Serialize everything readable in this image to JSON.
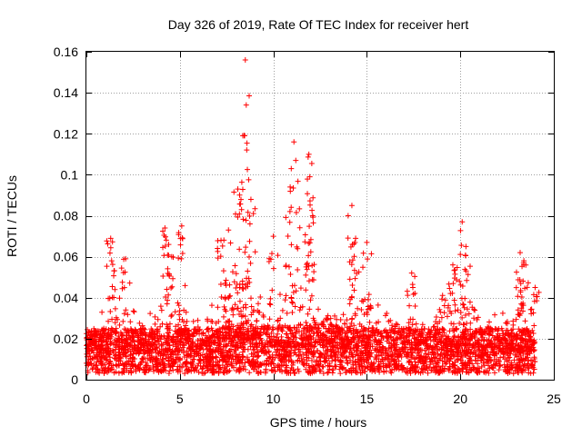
{
  "chart_data": {
    "type": "scatter",
    "title": "Day 326 of 2019, Rate Of TEC Index for receiver hert",
    "xlabel": "GPS time / hours",
    "ylabel": "ROTI / TECUs",
    "xlim": [
      0,
      25
    ],
    "ylim": [
      0,
      0.16
    ],
    "xticks": [
      0,
      5,
      10,
      15,
      20,
      25
    ],
    "xtick_labels": [
      "0",
      "5",
      "10",
      "15",
      "20",
      "25"
    ],
    "yticks": [
      0,
      0.02,
      0.04,
      0.06,
      0.08,
      0.1,
      0.12,
      0.14,
      0.16
    ],
    "ytick_labels": [
      "0",
      "0.02",
      "0.04",
      "0.06",
      "0.08",
      "0.1",
      "0.12",
      "0.14",
      "0.16"
    ],
    "grid": true,
    "marker": "+",
    "color": "#ff0000",
    "note": "Dense scatter of ROTI samples; baseline ~0.005-0.025 TECU/min across 0-24 h; highlighted peaks listed below.",
    "peaks": [
      {
        "x": 1.3,
        "y": 0.069
      },
      {
        "x": 1.35,
        "y": 0.058
      },
      {
        "x": 2.1,
        "y": 0.059
      },
      {
        "x": 4.2,
        "y": 0.074
      },
      {
        "x": 4.4,
        "y": 0.066
      },
      {
        "x": 5.1,
        "y": 0.075
      },
      {
        "x": 7.2,
        "y": 0.068
      },
      {
        "x": 7.6,
        "y": 0.073
      },
      {
        "x": 8.1,
        "y": 0.093
      },
      {
        "x": 8.3,
        "y": 0.083
      },
      {
        "x": 8.5,
        "y": 0.156
      },
      {
        "x": 8.55,
        "y": 0.134
      },
      {
        "x": 8.8,
        "y": 0.088
      },
      {
        "x": 10.0,
        "y": 0.07
      },
      {
        "x": 10.9,
        "y": 0.094
      },
      {
        "x": 11.1,
        "y": 0.116
      },
      {
        "x": 11.2,
        "y": 0.107
      },
      {
        "x": 11.9,
        "y": 0.11
      },
      {
        "x": 11.95,
        "y": 0.099
      },
      {
        "x": 12.1,
        "y": 0.08
      },
      {
        "x": 14.2,
        "y": 0.085
      },
      {
        "x": 14.4,
        "y": 0.069
      },
      {
        "x": 15.0,
        "y": 0.067
      },
      {
        "x": 17.4,
        "y": 0.052
      },
      {
        "x": 19.6,
        "y": 0.056
      },
      {
        "x": 20.1,
        "y": 0.077
      },
      {
        "x": 20.3,
        "y": 0.065
      },
      {
        "x": 23.2,
        "y": 0.062
      },
      {
        "x": 23.4,
        "y": 0.058
      },
      {
        "x": 24.0,
        "y": 0.045
      }
    ],
    "envelope": [
      {
        "x": 0.0,
        "base": 0.01,
        "top": 0.022
      },
      {
        "x": 0.5,
        "base": 0.01,
        "top": 0.028
      },
      {
        "x": 1.0,
        "base": 0.01,
        "top": 0.038
      },
      {
        "x": 1.5,
        "base": 0.01,
        "top": 0.036
      },
      {
        "x": 2.0,
        "base": 0.01,
        "top": 0.042
      },
      {
        "x": 2.5,
        "base": 0.01,
        "top": 0.038
      },
      {
        "x": 3.0,
        "base": 0.01,
        "top": 0.026
      },
      {
        "x": 3.5,
        "base": 0.01,
        "top": 0.03
      },
      {
        "x": 4.0,
        "base": 0.01,
        "top": 0.04
      },
      {
        "x": 4.5,
        "base": 0.01,
        "top": 0.042
      },
      {
        "x": 5.0,
        "base": 0.01,
        "top": 0.04
      },
      {
        "x": 5.5,
        "base": 0.01,
        "top": 0.032
      },
      {
        "x": 6.0,
        "base": 0.01,
        "top": 0.03
      },
      {
        "x": 6.5,
        "base": 0.01,
        "top": 0.034
      },
      {
        "x": 7.0,
        "base": 0.01,
        "top": 0.04
      },
      {
        "x": 7.5,
        "base": 0.012,
        "top": 0.045
      },
      {
        "x": 8.0,
        "base": 0.012,
        "top": 0.05
      },
      {
        "x": 8.5,
        "base": 0.012,
        "top": 0.055
      },
      {
        "x": 9.0,
        "base": 0.012,
        "top": 0.04
      },
      {
        "x": 9.5,
        "base": 0.012,
        "top": 0.04
      },
      {
        "x": 10.0,
        "base": 0.012,
        "top": 0.042
      },
      {
        "x": 10.5,
        "base": 0.012,
        "top": 0.04
      },
      {
        "x": 11.0,
        "base": 0.012,
        "top": 0.055
      },
      {
        "x": 11.5,
        "base": 0.012,
        "top": 0.05
      },
      {
        "x": 12.0,
        "base": 0.012,
        "top": 0.055
      },
      {
        "x": 12.5,
        "base": 0.012,
        "top": 0.04
      },
      {
        "x": 13.0,
        "base": 0.012,
        "top": 0.035
      },
      {
        "x": 13.5,
        "base": 0.012,
        "top": 0.038
      },
      {
        "x": 14.0,
        "base": 0.01,
        "top": 0.045
      },
      {
        "x": 14.5,
        "base": 0.01,
        "top": 0.048
      },
      {
        "x": 15.0,
        "base": 0.01,
        "top": 0.04
      },
      {
        "x": 15.5,
        "base": 0.01,
        "top": 0.035
      },
      {
        "x": 16.0,
        "base": 0.01,
        "top": 0.03
      },
      {
        "x": 16.5,
        "base": 0.01,
        "top": 0.032
      },
      {
        "x": 17.0,
        "base": 0.01,
        "top": 0.035
      },
      {
        "x": 17.5,
        "base": 0.01,
        "top": 0.03
      },
      {
        "x": 18.0,
        "base": 0.01,
        "top": 0.028
      },
      {
        "x": 18.5,
        "base": 0.01,
        "top": 0.032
      },
      {
        "x": 19.0,
        "base": 0.01,
        "top": 0.04
      },
      {
        "x": 19.5,
        "base": 0.01,
        "top": 0.042
      },
      {
        "x": 20.0,
        "base": 0.01,
        "top": 0.045
      },
      {
        "x": 20.5,
        "base": 0.01,
        "top": 0.04
      },
      {
        "x": 21.0,
        "base": 0.01,
        "top": 0.032
      },
      {
        "x": 21.5,
        "base": 0.01,
        "top": 0.03
      },
      {
        "x": 22.0,
        "base": 0.01,
        "top": 0.03
      },
      {
        "x": 22.5,
        "base": 0.01,
        "top": 0.032
      },
      {
        "x": 23.0,
        "base": 0.01,
        "top": 0.038
      },
      {
        "x": 23.5,
        "base": 0.01,
        "top": 0.036
      },
      {
        "x": 24.0,
        "base": 0.008,
        "top": 0.03
      }
    ]
  }
}
